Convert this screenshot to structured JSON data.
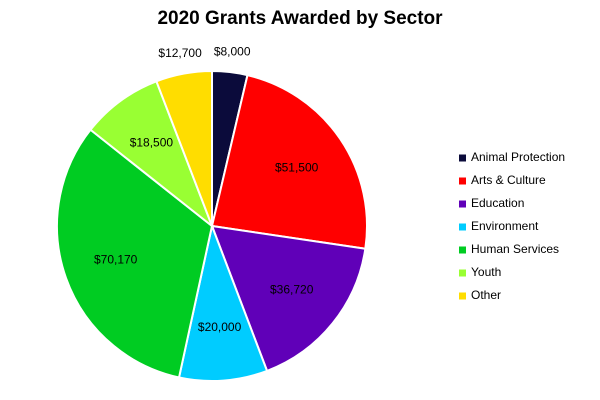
{
  "chart_data": {
    "type": "pie",
    "title": "2020 Grants Awarded by Sector",
    "categories": [
      "Animal Protection",
      "Arts & Culture",
      "Education",
      "Environment",
      "Human Services",
      "Youth",
      "Other"
    ],
    "values": [
      8000,
      51500,
      36720,
      20000,
      70170,
      18500,
      12700
    ],
    "value_labels": [
      "$8,000",
      "$51,500",
      "$36,720",
      "$20,000",
      "$70,170",
      "$18,500",
      "$12,700"
    ],
    "colors": [
      "#0b0b3b",
      "#ff0000",
      "#6000b8",
      "#00ccff",
      "#00cc22",
      "#99ff33",
      "#ffdd00"
    ],
    "legend": "right"
  }
}
